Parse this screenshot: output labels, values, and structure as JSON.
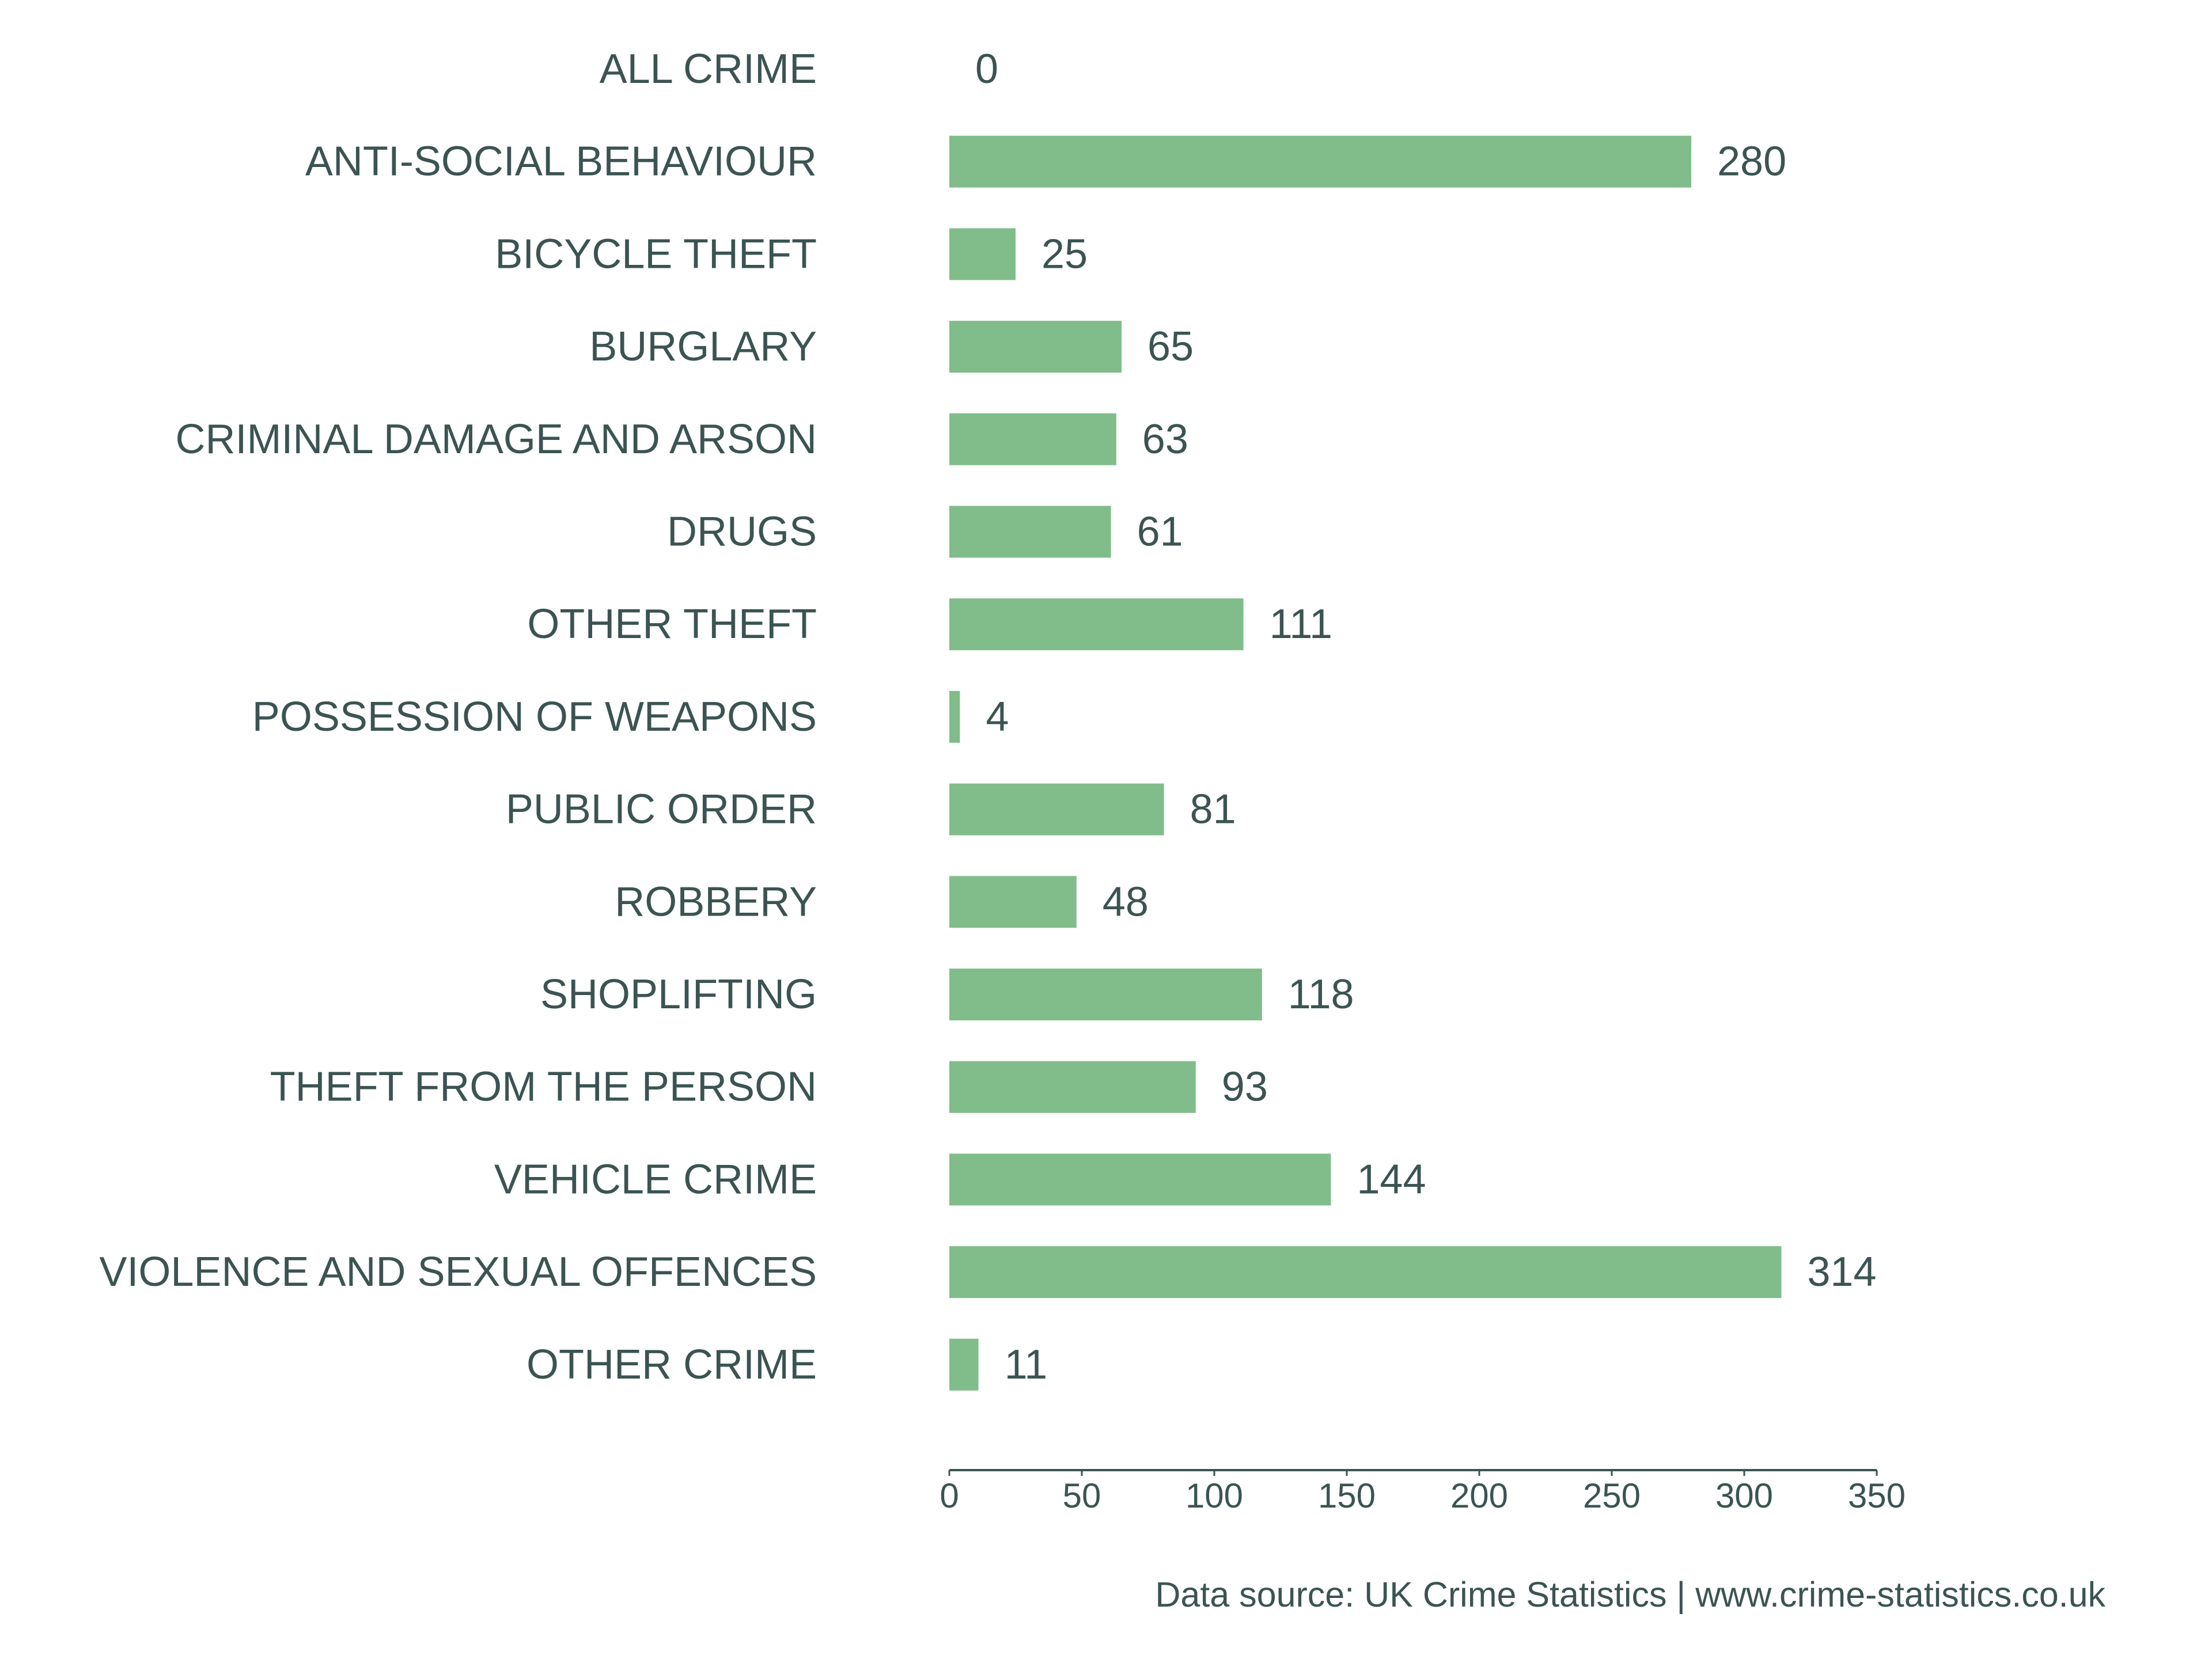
{
  "chart_data": {
    "type": "bar",
    "orientation": "horizontal",
    "title": "",
    "xlabel": "",
    "ylabel": "",
    "categories": [
      "ALL CRIME",
      "ANTI-SOCIAL BEHAVIOUR",
      "BICYCLE THEFT",
      "BURGLARY",
      "CRIMINAL DAMAGE AND ARSON",
      "DRUGS",
      "OTHER THEFT",
      "POSSESSION OF WEAPONS",
      "PUBLIC ORDER",
      "ROBBERY",
      "SHOPLIFTING",
      "THEFT FROM THE PERSON",
      "VEHICLE CRIME",
      "VIOLENCE AND SEXUAL OFFENCES",
      "OTHER CRIME"
    ],
    "values": [
      0,
      280,
      25,
      65,
      63,
      61,
      111,
      4,
      81,
      48,
      118,
      93,
      144,
      314,
      11
    ],
    "value_labels": [
      "0",
      "280",
      "25",
      "65",
      "63",
      "61",
      "111",
      "4",
      "81",
      "48",
      "118",
      "93",
      "144",
      "314",
      "11"
    ],
    "xlim": [
      0,
      350
    ],
    "x_ticks": [
      0,
      50,
      100,
      150,
      200,
      250,
      300,
      350
    ],
    "x_tick_labels": [
      "0",
      "50",
      "100",
      "150",
      "200",
      "250",
      "300",
      "350"
    ],
    "grid": false,
    "legend": "none",
    "bar_color": "#80bd8a",
    "text_color": "#3b5452",
    "axis_color": "#3b5452"
  },
  "source_note": "Data source: UK Crime Statistics | www.crime-statistics.co.uk"
}
